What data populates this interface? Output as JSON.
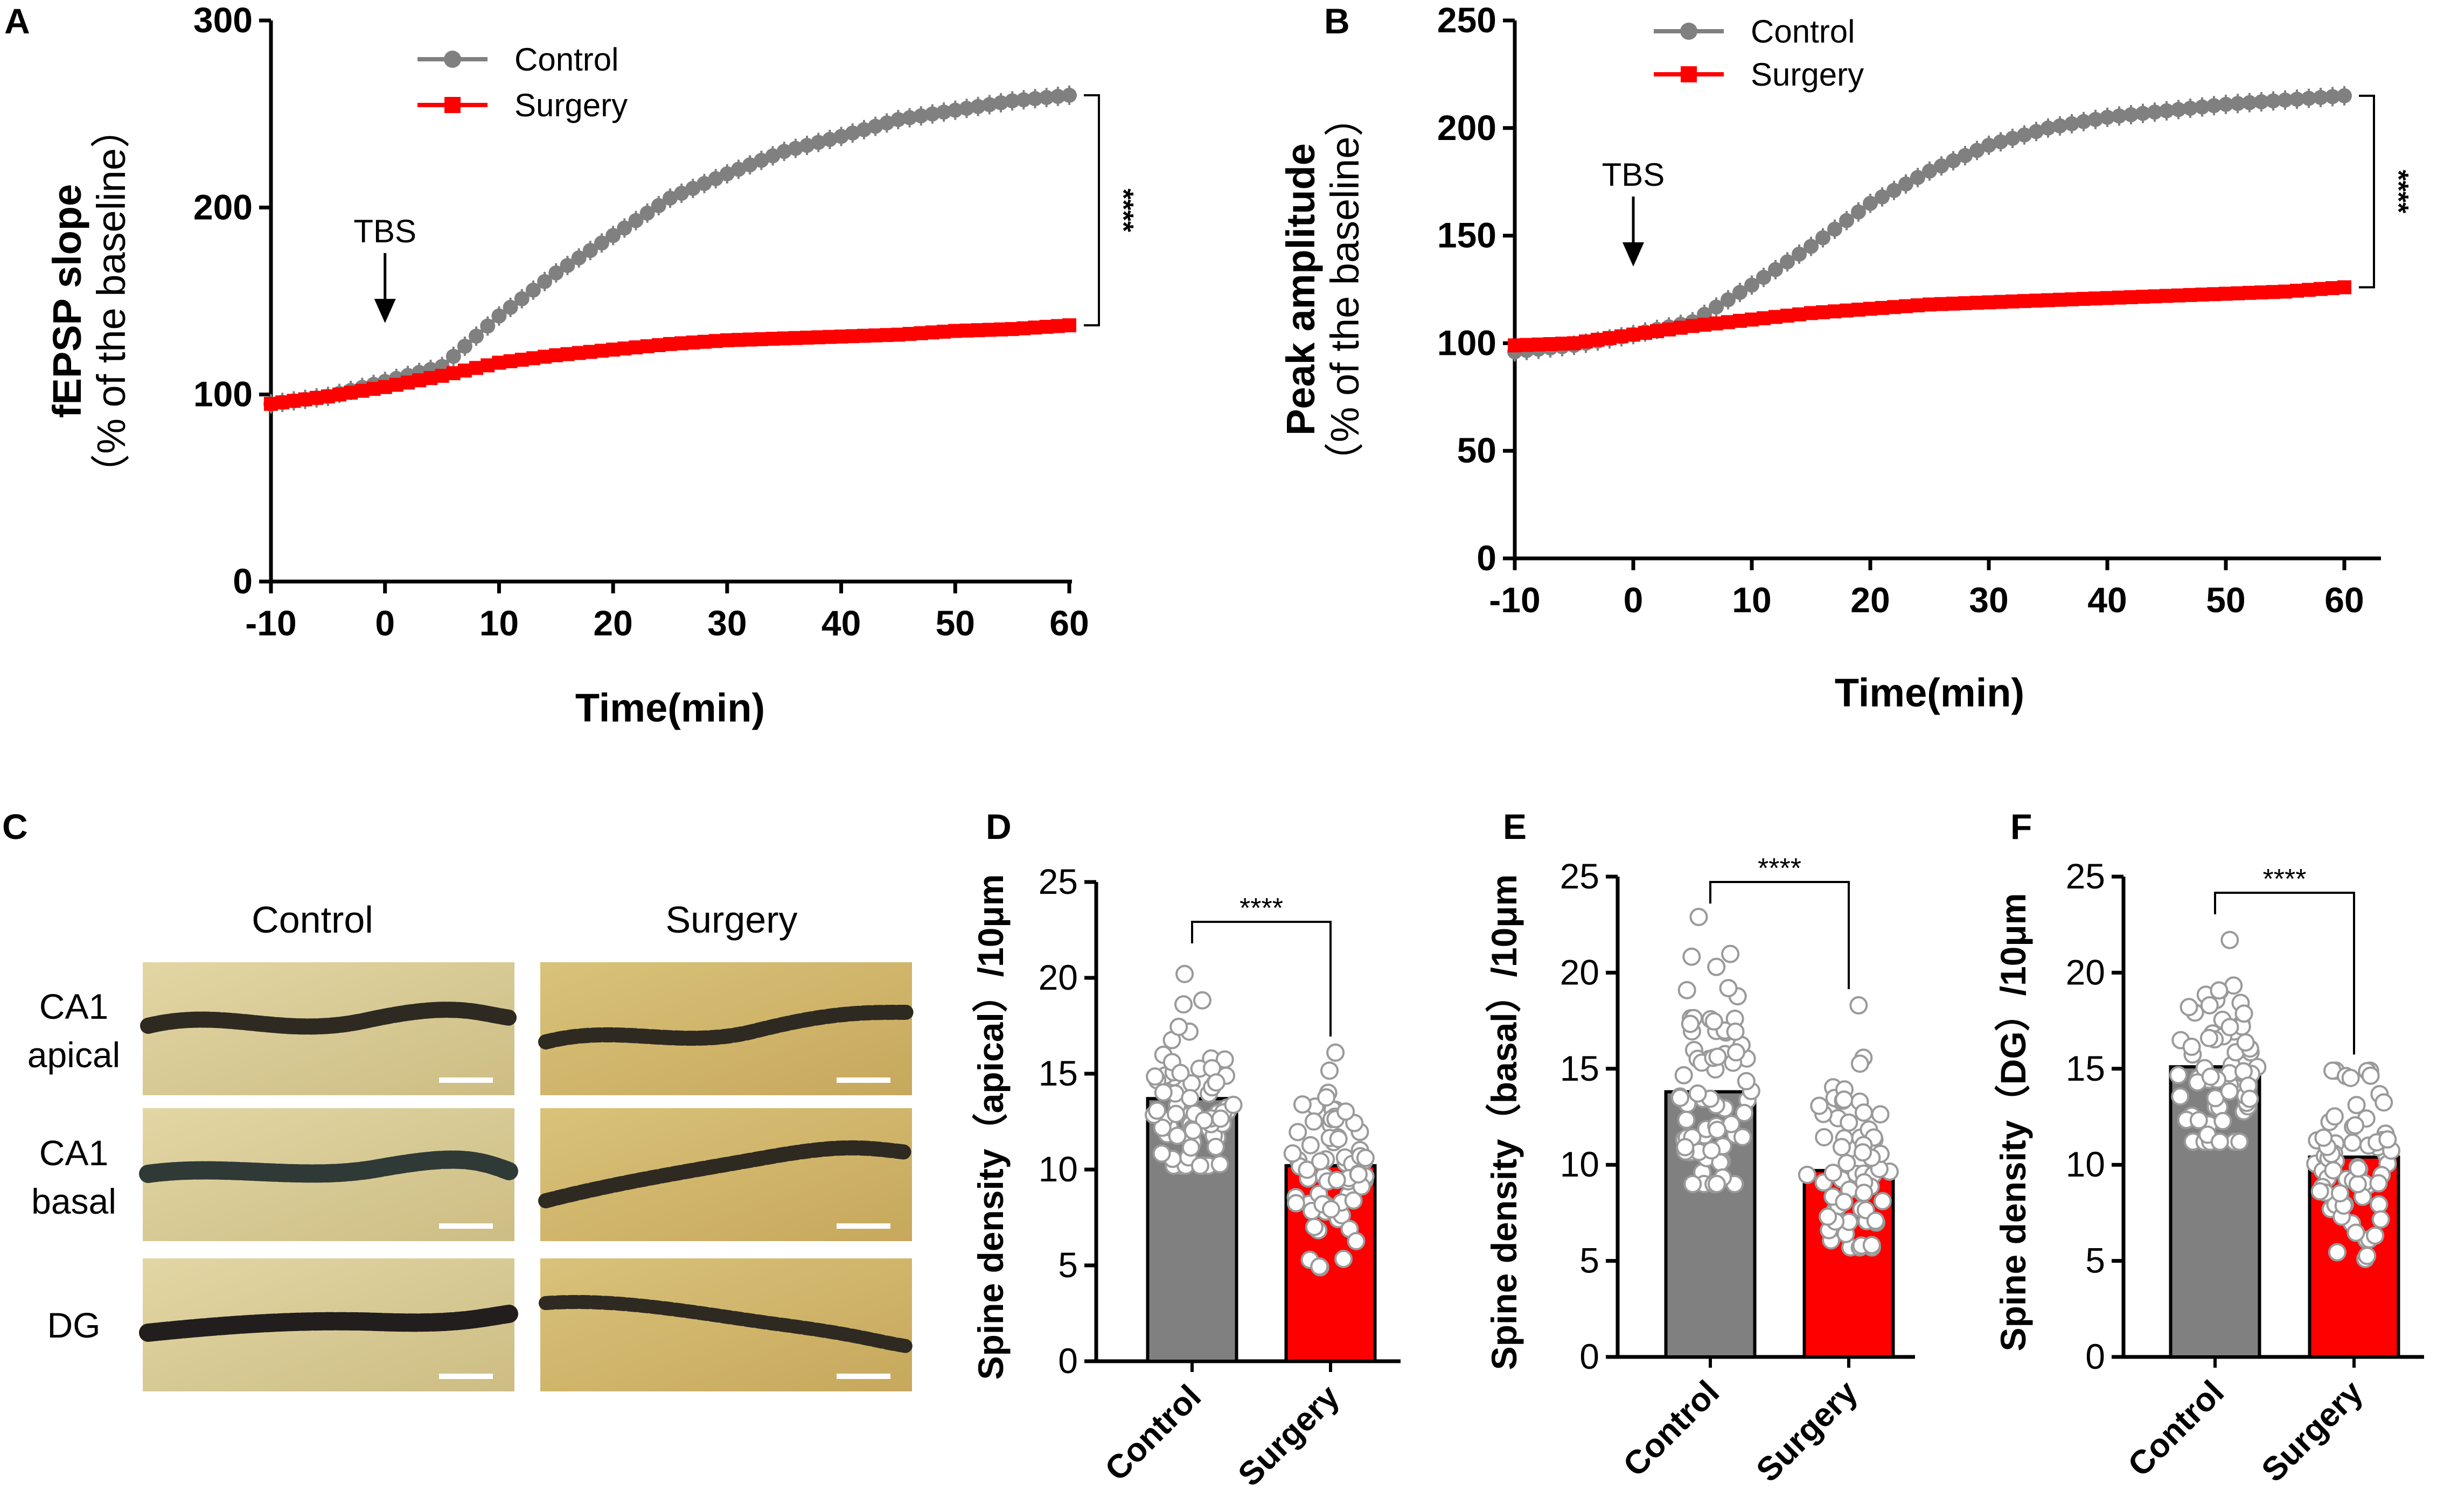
{
  "panels": {
    "A": "A",
    "B": "B",
    "C": "C",
    "D": "D",
    "E": "E",
    "F": "F"
  },
  "colors": {
    "control": "#808080",
    "surgery": "#ff0000",
    "axis": "#000000",
    "scale_bar": "#ffffff"
  },
  "chart_data": [
    {
      "id": "A",
      "type": "line",
      "title": "",
      "xlabel": "Time(min)",
      "ylabel": "fEPSP slope",
      "ylabel_sub": "（% of the baseline）",
      "xlim": [
        -10,
        60
      ],
      "ylim": [
        0,
        300
      ],
      "xticks": [
        "-10",
        "0",
        "10",
        "20",
        "30",
        "40",
        "50",
        "60"
      ],
      "yticks": [
        "0",
        "100",
        "200",
        "300"
      ],
      "legend": [
        "Control",
        "Surgery"
      ],
      "legend_position": "top-center",
      "annotation": "TBS",
      "annotation_x": 0,
      "significance": "****",
      "x": [
        -10,
        -5,
        0,
        5,
        10,
        15,
        20,
        25,
        30,
        35,
        40,
        45,
        50,
        55,
        60
      ],
      "series": [
        {
          "name": "Control",
          "values": [
            95,
            99,
            107,
            115,
            142,
            165,
            185,
            205,
            218,
            230,
            238,
            247,
            252,
            257,
            260
          ]
        },
        {
          "name": "Surgery",
          "values": [
            95,
            99,
            104,
            110,
            117,
            121,
            124,
            127,
            129,
            130,
            131,
            132,
            134,
            135,
            137
          ]
        }
      ]
    },
    {
      "id": "B",
      "type": "line",
      "title": "",
      "xlabel": "Time(min)",
      "ylabel": "Peak amplitude",
      "ylabel_sub": "（% of the baseline）",
      "xlim": [
        -10,
        60
      ],
      "ylim": [
        0,
        250
      ],
      "xticks": [
        "-10",
        "0",
        "10",
        "20",
        "30",
        "40",
        "50",
        "60"
      ],
      "yticks": [
        "0",
        "50",
        "100",
        "150",
        "200",
        "250"
      ],
      "legend": [
        "Control",
        "Surgery"
      ],
      "legend_position": "top-center",
      "annotation": "TBS",
      "annotation_x": 0,
      "significance": "****",
      "x": [
        -10,
        -5,
        0,
        5,
        10,
        15,
        20,
        25,
        30,
        35,
        40,
        45,
        50,
        55,
        60
      ],
      "series": [
        {
          "name": "Control",
          "values": [
            96,
            99,
            104,
            110,
            127,
            145,
            165,
            180,
            192,
            200,
            205,
            208,
            211,
            213,
            215
          ]
        },
        {
          "name": "Surgery",
          "values": [
            99,
            100,
            104,
            108,
            111,
            114,
            116,
            118,
            119,
            120,
            121,
            122,
            123,
            124,
            126
          ]
        }
      ]
    },
    {
      "id": "D",
      "type": "bar",
      "ylabel": "Spine density（apical）/10μm",
      "categories": [
        "Control",
        "Surgery"
      ],
      "values": [
        13.7,
        10.2
      ],
      "ylim": [
        0,
        25
      ],
      "yticks": [
        "0",
        "5",
        "10",
        "15",
        "20",
        "25"
      ],
      "significance": "****",
      "points_max": [
        20.2,
        16.1
      ],
      "points_min": [
        10.2,
        4.9
      ]
    },
    {
      "id": "E",
      "type": "bar",
      "ylabel": "Spine density（basal）/10μm",
      "categories": [
        "Control",
        "Surgery"
      ],
      "values": [
        13.8,
        9.7
      ],
      "ylim": [
        0,
        25
      ],
      "yticks": [
        "0",
        "5",
        "10",
        "15",
        "20",
        "25"
      ],
      "significance": "****",
      "points_max": [
        22.9,
        18.3
      ],
      "points_min": [
        9.0,
        5.7
      ]
    },
    {
      "id": "F",
      "type": "bar",
      "ylabel": "Spine density（DG）/10μm",
      "categories": [
        "Control",
        "Surgery"
      ],
      "values": [
        15.1,
        10.4
      ],
      "ylim": [
        0,
        25
      ],
      "yticks": [
        "0",
        "5",
        "10",
        "15",
        "20",
        "25"
      ],
      "significance": "****",
      "points_max": [
        21.7,
        14.9
      ],
      "points_min": [
        11.2,
        5.1
      ]
    }
  ],
  "micrographs": {
    "columns": [
      "Control",
      "Surgery"
    ],
    "rows": [
      {
        "label_line1": "CA1",
        "label_line2": "apical"
      },
      {
        "label_line1": "CA1",
        "label_line2": "basal"
      },
      {
        "label_line1": "DG",
        "label_line2": ""
      }
    ]
  }
}
